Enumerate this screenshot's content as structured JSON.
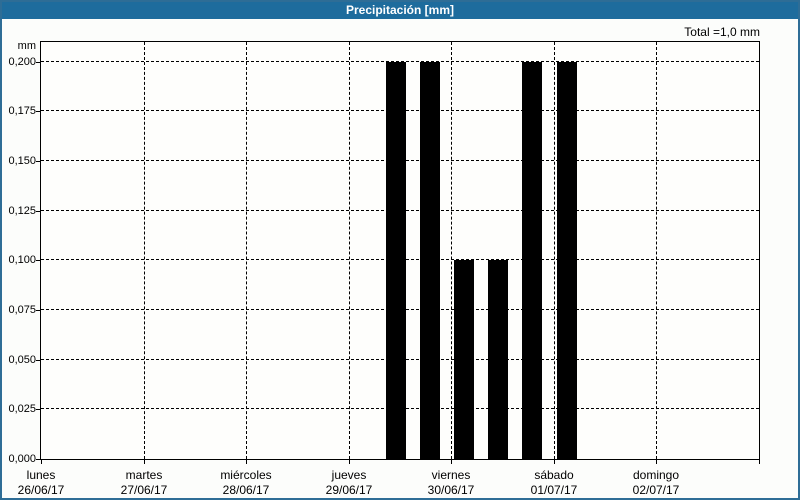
{
  "header": {
    "title": "Precipitación [mm]"
  },
  "summary": {
    "total_label": "Total =1,0 mm"
  },
  "y_axis": {
    "unit_label": "mm",
    "ticks": [
      {
        "value": 0.2,
        "label": "0,200"
      },
      {
        "value": 0.175,
        "label": "0,175"
      },
      {
        "value": 0.15,
        "label": "0,150"
      },
      {
        "value": 0.125,
        "label": "0,125"
      },
      {
        "value": 0.1,
        "label": "0,100"
      },
      {
        "value": 0.075,
        "label": "0,075"
      },
      {
        "value": 0.05,
        "label": "0,050"
      },
      {
        "value": 0.025,
        "label": "0,025"
      },
      {
        "value": 0.0,
        "label": "0,000"
      }
    ]
  },
  "x_axis": {
    "days": [
      {
        "name": "lunes",
        "date": "26/06/17"
      },
      {
        "name": "martes",
        "date": "27/06/17"
      },
      {
        "name": "miércoles",
        "date": "28/06/17"
      },
      {
        "name": "jueves",
        "date": "29/06/17"
      },
      {
        "name": "viernes",
        "date": "30/06/17"
      },
      {
        "name": "sábado",
        "date": "01/07/17"
      },
      {
        "name": "domingo",
        "date": "02/07/17"
      }
    ]
  },
  "chart_data": {
    "type": "bar",
    "title": "Precipitación [mm]",
    "ylabel": "mm",
    "ylim": [
      0,
      0.21
    ],
    "y_tick_step": 0.025,
    "y_tick_labels": [
      "0,200",
      "0,175",
      "0,150",
      "0,125",
      "0,100",
      "0,075",
      "0,050",
      "0,025",
      "0,000"
    ],
    "grid": "dashed",
    "legend_position": "none",
    "total_mm": 1.0,
    "total_label": "Total =1,0 mm",
    "bar_color": "#000000",
    "categories": [
      "lunes 26/06/17",
      "martes 27/06/17",
      "miércoles 28/06/17",
      "jueves 29/06/17",
      "viernes 30/06/17",
      "sábado 01/07/17",
      "domingo 02/07/17"
    ],
    "bars": [
      {
        "day_index": 3,
        "day": "jueves 29/06/17",
        "period_center_hour": 11,
        "value_mm": 0.2
      },
      {
        "day_index": 3,
        "day": "jueves 29/06/17",
        "period_center_hour": 19,
        "value_mm": 0.2
      },
      {
        "day_index": 4,
        "day": "viernes 30/06/17",
        "period_center_hour": 3,
        "value_mm": 0.1
      },
      {
        "day_index": 4,
        "day": "viernes 30/06/17",
        "period_center_hour": 11,
        "value_mm": 0.1
      },
      {
        "day_index": 4,
        "day": "viernes 30/06/17",
        "period_center_hour": 19,
        "value_mm": 0.2
      },
      {
        "day_index": 5,
        "day": "sábado 01/07/17",
        "period_center_hour": 3,
        "value_mm": 0.2
      }
    ]
  },
  "colors": {
    "header_bg": "#1e6c9d",
    "header_text": "#ffffff",
    "frame_border": "#2e6d96",
    "background": "#fcfdfb",
    "bar": "#000000",
    "grid": "#000000",
    "text": "#000000"
  }
}
